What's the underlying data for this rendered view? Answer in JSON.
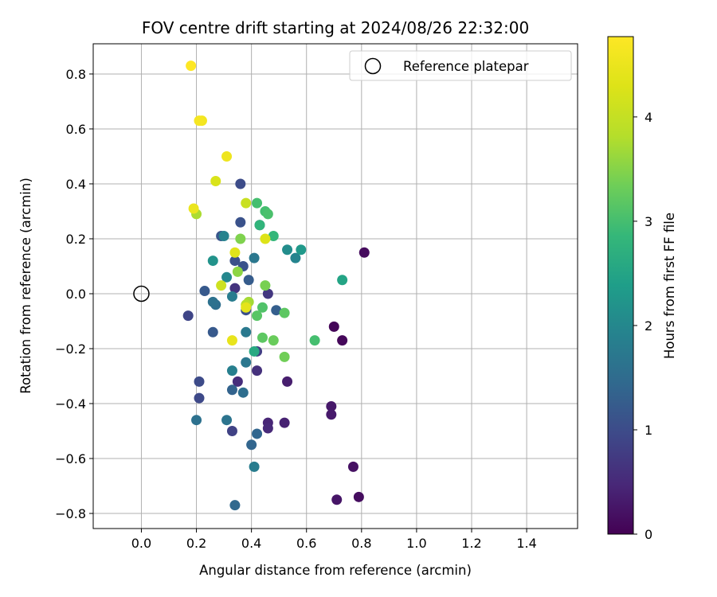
{
  "chart_data": {
    "type": "scatter",
    "title": "FOV centre drift starting at 2024/08/26 22:32:00",
    "xlabel": "Angular distance from reference (arcmin)",
    "ylabel": "Rotation from reference (arcmin)",
    "xlim": [
      -0.175,
      1.585
    ],
    "ylim": [
      -0.855,
      0.91
    ],
    "xticks": [
      0.0,
      0.2,
      0.4,
      0.6,
      0.8,
      1.0,
      1.2,
      1.4
    ],
    "xtick_labels": [
      "0.0",
      "0.2",
      "0.4",
      "0.6",
      "0.8",
      "1.0",
      "1.2",
      "1.4"
    ],
    "yticks": [
      -0.8,
      -0.6,
      -0.4,
      -0.2,
      0.0,
      0.2,
      0.4,
      0.6,
      0.8
    ],
    "ytick_labels": [
      "−0.8",
      "−0.6",
      "−0.4",
      "−0.2",
      "0.0",
      "0.2",
      "0.4",
      "0.6",
      "0.8"
    ],
    "grid": true,
    "legend": {
      "placement": "top-right",
      "entries": [
        {
          "label": "Reference platepar",
          "marker": "open-circle"
        }
      ]
    },
    "reference_point": {
      "x": 0.0,
      "y": 0.0
    },
    "colorbar": {
      "label": "Hours from first FF file",
      "colormap": "viridis",
      "range": [
        0,
        4.77
      ],
      "ticks": [
        0,
        1,
        2,
        3,
        4
      ],
      "tick_labels": [
        "0",
        "1",
        "2",
        "3",
        "4"
      ]
    },
    "points": [
      {
        "x": 0.7,
        "y": -0.12,
        "hours": 0.05
      },
      {
        "x": 0.73,
        "y": -0.17,
        "hours": 0.08
      },
      {
        "x": 0.81,
        "y": 0.15,
        "hours": 0.12
      },
      {
        "x": 0.79,
        "y": -0.74,
        "hours": 0.15
      },
      {
        "x": 0.77,
        "y": -0.63,
        "hours": 0.2
      },
      {
        "x": 0.71,
        "y": -0.75,
        "hours": 0.25
      },
      {
        "x": 0.69,
        "y": -0.41,
        "hours": 0.28
      },
      {
        "x": 0.69,
        "y": -0.44,
        "hours": 0.3
      },
      {
        "x": 0.53,
        "y": -0.32,
        "hours": 0.35
      },
      {
        "x": 0.52,
        "y": -0.47,
        "hours": 0.4
      },
      {
        "x": 0.46,
        "y": -0.47,
        "hours": 0.45
      },
      {
        "x": 0.46,
        "y": -0.49,
        "hours": 0.5
      },
      {
        "x": 0.35,
        "y": -0.32,
        "hours": 0.55
      },
      {
        "x": 0.42,
        "y": -0.28,
        "hours": 0.6
      },
      {
        "x": 0.34,
        "y": 0.02,
        "hours": 0.65
      },
      {
        "x": 0.46,
        "y": 0.0,
        "hours": 0.7
      },
      {
        "x": 0.43,
        "y": 0.25,
        "hours": 0.75
      },
      {
        "x": 0.42,
        "y": -0.21,
        "hours": 0.8
      },
      {
        "x": 0.33,
        "y": -0.5,
        "hours": 0.85
      },
      {
        "x": 0.17,
        "y": -0.08,
        "hours": 0.9
      },
      {
        "x": 0.21,
        "y": -0.38,
        "hours": 0.95
      },
      {
        "x": 0.21,
        "y": -0.32,
        "hours": 0.98
      },
      {
        "x": 0.36,
        "y": 0.4,
        "hours": 1.0
      },
      {
        "x": 0.34,
        "y": 0.12,
        "hours": 1.05
      },
      {
        "x": 0.38,
        "y": -0.06,
        "hours": 1.05
      },
      {
        "x": 0.37,
        "y": 0.1,
        "hours": 1.1
      },
      {
        "x": 0.36,
        "y": 0.26,
        "hours": 1.1
      },
      {
        "x": 0.29,
        "y": 0.21,
        "hours": 1.15
      },
      {
        "x": 0.26,
        "y": -0.14,
        "hours": 1.2
      },
      {
        "x": 0.23,
        "y": 0.01,
        "hours": 1.2
      },
      {
        "x": 0.39,
        "y": 0.05,
        "hours": 1.25
      },
      {
        "x": 0.49,
        "y": -0.06,
        "hours": 1.3
      },
      {
        "x": 0.33,
        "y": -0.35,
        "hours": 1.35
      },
      {
        "x": 0.4,
        "y": -0.55,
        "hours": 1.4
      },
      {
        "x": 0.42,
        "y": -0.51,
        "hours": 1.4
      },
      {
        "x": 0.34,
        "y": -0.77,
        "hours": 1.45
      },
      {
        "x": 0.37,
        "y": -0.36,
        "hours": 1.55
      },
      {
        "x": 0.27,
        "y": -0.04,
        "hours": 1.55
      },
      {
        "x": 0.26,
        "y": -0.03,
        "hours": 1.6
      },
      {
        "x": 0.2,
        "y": -0.46,
        "hours": 1.6
      },
      {
        "x": 0.31,
        "y": -0.46,
        "hours": 1.65
      },
      {
        "x": 0.38,
        "y": -0.25,
        "hours": 1.7
      },
      {
        "x": 0.41,
        "y": 0.13,
        "hours": 1.7
      },
      {
        "x": 0.38,
        "y": -0.14,
        "hours": 1.75
      },
      {
        "x": 0.33,
        "y": -0.01,
        "hours": 1.8
      },
      {
        "x": 0.41,
        "y": -0.63,
        "hours": 1.8
      },
      {
        "x": 0.33,
        "y": -0.28,
        "hours": 1.85
      },
      {
        "x": 0.3,
        "y": 0.21,
        "hours": 1.9
      },
      {
        "x": 0.56,
        "y": 0.13,
        "hours": 1.95
      },
      {
        "x": 0.31,
        "y": 0.06,
        "hours": 2.0
      },
      {
        "x": 0.53,
        "y": 0.16,
        "hours": 2.1
      },
      {
        "x": 0.26,
        "y": 0.12,
        "hours": 2.2
      },
      {
        "x": 0.58,
        "y": 0.16,
        "hours": 2.3
      },
      {
        "x": 0.73,
        "y": 0.05,
        "hours": 2.5
      },
      {
        "x": 0.41,
        "y": -0.21,
        "hours": 2.6
      },
      {
        "x": 0.43,
        "y": 0.25,
        "hours": 2.8
      },
      {
        "x": 0.48,
        "y": 0.21,
        "hours": 2.85
      },
      {
        "x": 0.42,
        "y": 0.33,
        "hours": 3.0
      },
      {
        "x": 0.45,
        "y": 0.3,
        "hours": 3.0
      },
      {
        "x": 0.46,
        "y": 0.29,
        "hours": 3.05
      },
      {
        "x": 0.63,
        "y": -0.17,
        "hours": 3.0
      },
      {
        "x": 0.44,
        "y": -0.05,
        "hours": 3.1
      },
      {
        "x": 0.42,
        "y": -0.08,
        "hours": 3.15
      },
      {
        "x": 0.52,
        "y": -0.07,
        "hours": 3.2
      },
      {
        "x": 0.44,
        "y": -0.16,
        "hours": 3.2
      },
      {
        "x": 0.48,
        "y": -0.17,
        "hours": 3.3
      },
      {
        "x": 0.52,
        "y": -0.23,
        "hours": 3.35
      },
      {
        "x": 0.45,
        "y": 0.03,
        "hours": 3.4
      },
      {
        "x": 0.36,
        "y": 0.2,
        "hours": 3.45
      },
      {
        "x": 0.35,
        "y": 0.08,
        "hours": 3.55
      },
      {
        "x": 0.39,
        "y": -0.03,
        "hours": 3.7
      },
      {
        "x": 0.2,
        "y": 0.29,
        "hours": 3.75
      },
      {
        "x": 0.38,
        "y": -0.04,
        "hours": 3.85
      },
      {
        "x": 0.38,
        "y": 0.33,
        "hours": 4.05
      },
      {
        "x": 0.29,
        "y": 0.03,
        "hours": 4.1
      },
      {
        "x": 0.27,
        "y": 0.41,
        "hours": 4.25
      },
      {
        "x": 0.45,
        "y": 0.2,
        "hours": 4.3
      },
      {
        "x": 0.34,
        "y": 0.15,
        "hours": 4.35
      },
      {
        "x": 0.38,
        "y": -0.05,
        "hours": 4.4
      },
      {
        "x": 0.33,
        "y": -0.17,
        "hours": 4.45
      },
      {
        "x": 0.19,
        "y": 0.31,
        "hours": 4.5
      },
      {
        "x": 0.31,
        "y": 0.5,
        "hours": 4.55
      },
      {
        "x": 0.22,
        "y": 0.63,
        "hours": 4.6
      },
      {
        "x": 0.21,
        "y": 0.63,
        "hours": 4.65
      },
      {
        "x": 0.18,
        "y": 0.83,
        "hours": 4.77
      }
    ]
  }
}
